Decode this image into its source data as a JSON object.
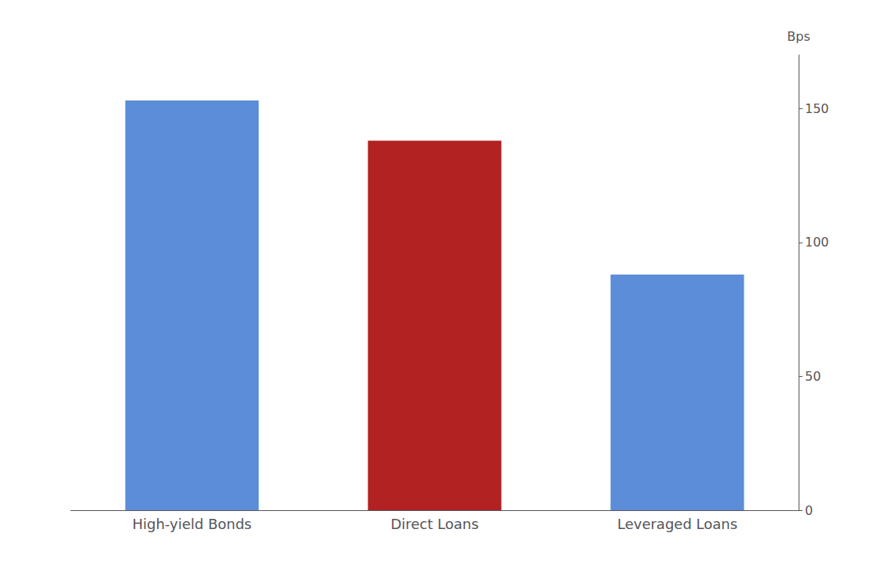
{
  "chart_data": {
    "type": "bar",
    "categories": [
      "High-yield Bonds",
      "Direct Loans",
      "Leveraged Loans"
    ],
    "values": [
      153,
      138,
      88
    ],
    "colors": [
      "#5b8dd9",
      "#b22222",
      "#5b8dd9"
    ],
    "ylabel": "Bps",
    "ylim": [
      0,
      170
    ],
    "yticks": [
      0,
      50,
      100,
      150
    ],
    "grid": false
  }
}
